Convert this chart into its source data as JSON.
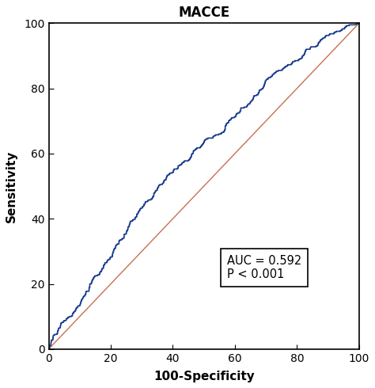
{
  "title": "MACCE",
  "xlabel": "100-Specificity",
  "ylabel": "Sensitivity",
  "auc_text": "AUC = 0.592",
  "p_text": "P < 0.001",
  "xlim": [
    0,
    100
  ],
  "ylim": [
    0,
    100
  ],
  "xticks": [
    0,
    20,
    40,
    60,
    80,
    100
  ],
  "yticks": [
    0,
    20,
    40,
    60,
    80,
    100
  ],
  "roc_color": "#1a3c8f",
  "diagonal_color": "#c87050",
  "title_fontsize": 12,
  "label_fontsize": 11,
  "tick_fontsize": 10,
  "annotation_fontsize": 10.5,
  "seed": 42,
  "auc": 0.592,
  "n_points": 800,
  "figsize": [
    4.74,
    4.9
  ],
  "dpi": 100
}
